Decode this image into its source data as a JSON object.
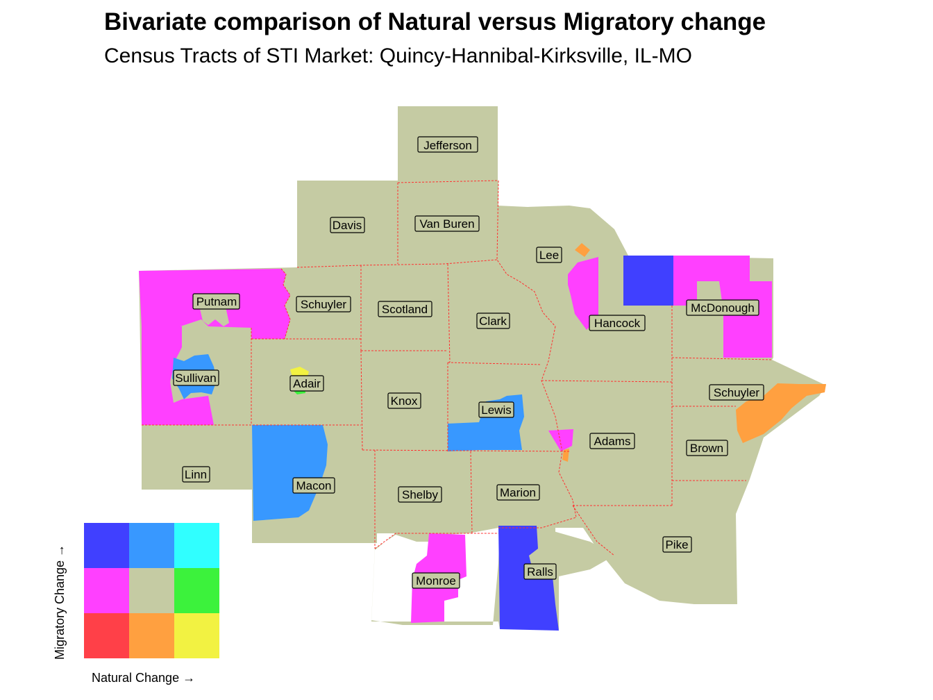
{
  "title": "Bivariate comparison of Natural versus Migratory change",
  "subtitle": "Census Tracts of STI Market: Quincy-Hannibal-Kirksville, IL-MO",
  "colors": {
    "base": "#c5cba3",
    "border": "#ff3030",
    "low_low": "#ff4048",
    "mid_low": "#ffa040",
    "high_low": "#f2f242",
    "low_mid": "#ff40ff",
    "mid_mid": "#c5cba3",
    "high_mid": "#3cf23c",
    "low_high": "#4040ff",
    "mid_high": "#3898ff",
    "high_high": "#30ffff"
  },
  "counties": [
    "Jefferson",
    "Davis",
    "Van Buren",
    "Lee",
    "Putnam",
    "Schuyler",
    "Scotland",
    "Clark",
    "Hancock",
    "McDonough",
    "Sullivan",
    "Adair",
    "Knox",
    "Lewis",
    "Schuyler",
    "Adams",
    "Brown",
    "Linn",
    "Macon",
    "Shelby",
    "Marion",
    "Pike",
    "Monroe",
    "Ralls"
  ],
  "legend": {
    "x_label": "Natural Change →",
    "y_label": "Migratory Change →",
    "grid": [
      [
        "low_high",
        "mid_high",
        "high_high"
      ],
      [
        "low_mid",
        "mid_mid",
        "high_mid"
      ],
      [
        "low_low",
        "mid_low",
        "high_low"
      ]
    ]
  }
}
